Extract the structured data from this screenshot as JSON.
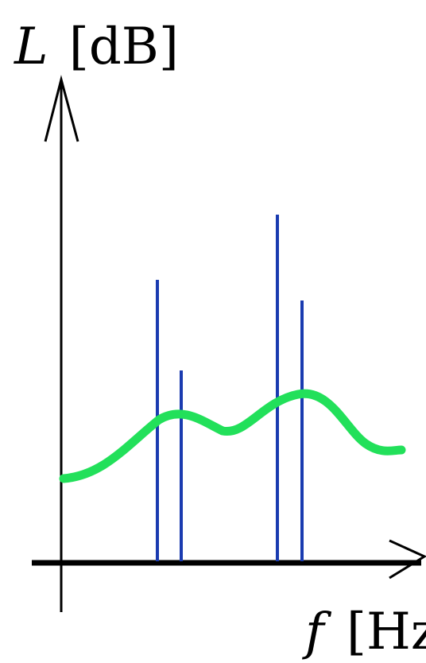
{
  "y_axis": {
    "symbol": "L",
    "unit": "[dB]"
  },
  "x_axis": {
    "symbol": "f",
    "unit": "[Hz]"
  },
  "colors": {
    "axes": "#000000",
    "tones": "#1a3bb0",
    "noise_curve": "#22e05a"
  }
}
